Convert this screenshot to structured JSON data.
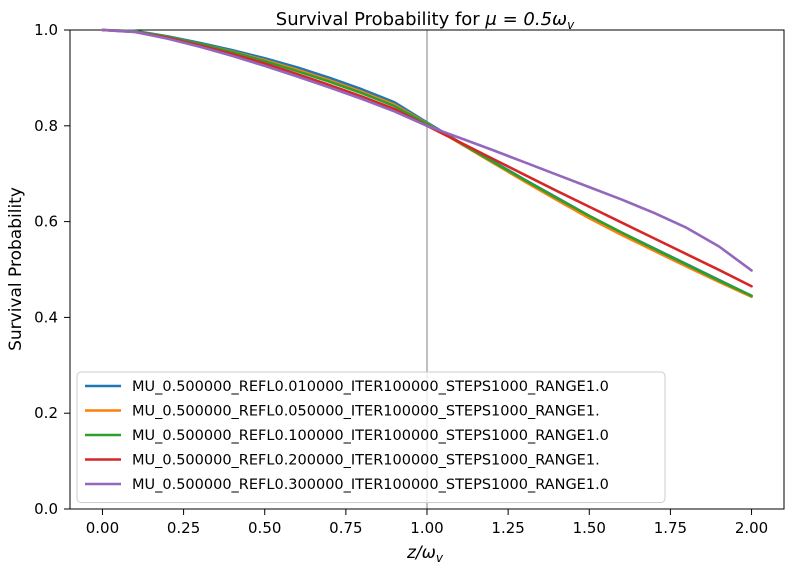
{
  "chart_data": {
    "type": "line",
    "title_prefix": "Survival Probability for ",
    "title_math": "μ = 0.5ω",
    "title_math_sub": "v",
    "xlabel_math": "z/ω",
    "xlabel_sub": "v",
    "ylabel": "Survival Probability",
    "xlim": [
      -0.1,
      2.1
    ],
    "ylim": [
      0.0,
      1.0
    ],
    "xticks": [
      0.0,
      0.25,
      0.5,
      0.75,
      1.0,
      1.25,
      1.5,
      1.75,
      2.0
    ],
    "xtick_labels": [
      "0.00",
      "0.25",
      "0.50",
      "0.75",
      "1.00",
      "1.25",
      "1.50",
      "1.75",
      "2.00"
    ],
    "yticks": [
      0.0,
      0.2,
      0.4,
      0.6,
      0.8,
      1.0
    ],
    "ytick_labels": [
      "0.0",
      "0.2",
      "0.4",
      "0.6",
      "0.8",
      "1.0"
    ],
    "vline_x": 1.0,
    "vline_color": "#808080",
    "grid": false,
    "legend_position": "lower-left",
    "x": [
      0.0,
      0.1,
      0.2,
      0.3,
      0.4,
      0.5,
      0.6,
      0.7,
      0.8,
      0.9,
      1.0,
      1.1,
      1.2,
      1.3,
      1.4,
      1.5,
      1.6,
      1.7,
      1.8,
      1.9,
      2.0
    ],
    "series": [
      {
        "name": "MU_0.500000_REFL0.010000_ITER100000_STEPS1000_RANGE1.0",
        "color": "#1f77b4",
        "values": [
          1.0,
          0.998,
          0.987,
          0.973,
          0.958,
          0.941,
          0.922,
          0.9,
          0.876,
          0.849,
          0.807,
          0.766,
          0.727,
          0.688,
          0.65,
          0.612,
          0.577,
          0.544,
          0.511,
          0.478,
          0.445
        ]
      },
      {
        "name": "MU_0.500000_REFL0.050000_ITER100000_STEPS1000_RANGE1.",
        "color": "#ff7f0e",
        "values": [
          1.0,
          0.997,
          0.986,
          0.971,
          0.955,
          0.937,
          0.917,
          0.895,
          0.871,
          0.844,
          0.805,
          0.764,
          0.724,
          0.684,
          0.645,
          0.607,
          0.572,
          0.539,
          0.506,
          0.474,
          0.443
        ]
      },
      {
        "name": "MU_0.500000_REFL0.100000_ITER100000_STEPS1000_RANGE1.0",
        "color": "#2ca02c",
        "values": [
          1.0,
          0.997,
          0.986,
          0.971,
          0.954,
          0.935,
          0.914,
          0.892,
          0.868,
          0.841,
          0.804,
          0.765,
          0.726,
          0.687,
          0.649,
          0.612,
          0.577,
          0.543,
          0.51,
          0.477,
          0.445
        ]
      },
      {
        "name": "MU_0.500000_REFL0.200000_ITER100000_STEPS1000_RANGE1.",
        "color": "#d62728",
        "values": [
          1.0,
          0.996,
          0.984,
          0.968,
          0.95,
          0.93,
          0.908,
          0.885,
          0.861,
          0.835,
          0.8,
          0.766,
          0.732,
          0.698,
          0.664,
          0.631,
          0.598,
          0.565,
          0.532,
          0.499,
          0.465
        ]
      },
      {
        "name": "MU_0.500000_REFL0.300000_ITER100000_STEPS1000_RANGE1.0",
        "color": "#9467bd",
        "values": [
          1.0,
          0.996,
          0.982,
          0.965,
          0.946,
          0.925,
          0.903,
          0.88,
          0.856,
          0.83,
          0.8,
          0.775,
          0.75,
          0.724,
          0.698,
          0.672,
          0.646,
          0.618,
          0.587,
          0.548,
          0.498
        ]
      }
    ]
  }
}
